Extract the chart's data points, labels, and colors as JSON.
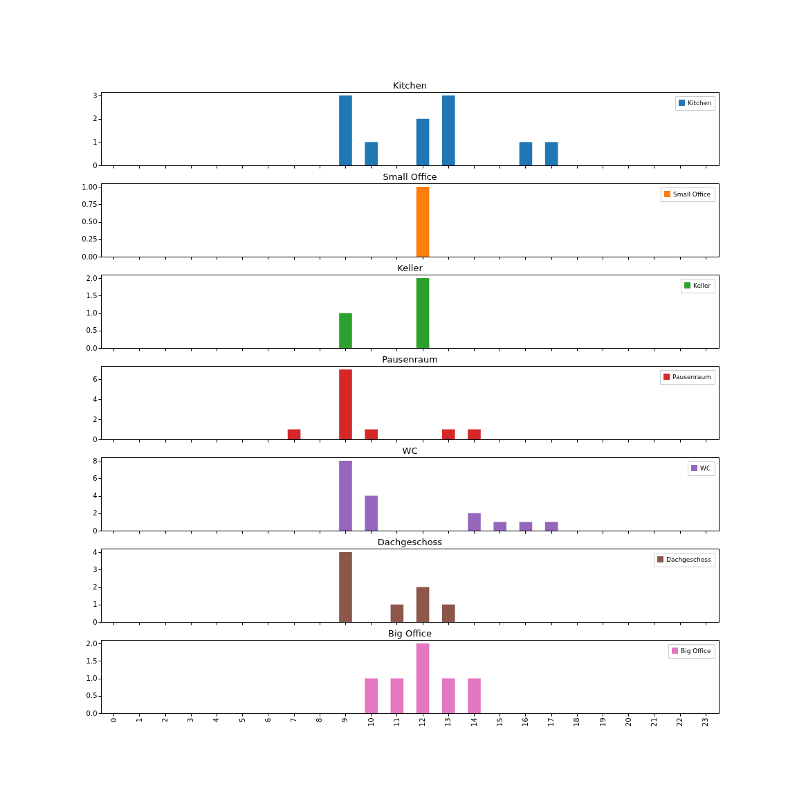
{
  "chart_data": [
    {
      "type": "bar",
      "title": "Kitchen",
      "categories": [
        "0",
        "1",
        "2",
        "3",
        "4",
        "5",
        "6",
        "7",
        "8",
        "9",
        "10",
        "11",
        "12",
        "13",
        "14",
        "15",
        "16",
        "17",
        "18",
        "19",
        "20",
        "21",
        "22",
        "23"
      ],
      "series": [
        {
          "name": "Kitchen",
          "color": "#1f77b4",
          "values": [
            0,
            0,
            0,
            0,
            0,
            0,
            0,
            0,
            0,
            3,
            1,
            0,
            2,
            3,
            0,
            0,
            1,
            1,
            0,
            0,
            0,
            0,
            0,
            0
          ]
        }
      ],
      "ylim": [
        0,
        3.15
      ],
      "yticks": [
        0,
        1,
        2,
        3
      ],
      "legend": "top right",
      "tick_labels": "y"
    },
    {
      "type": "bar",
      "title": "Small Office",
      "categories": [
        "0",
        "1",
        "2",
        "3",
        "4",
        "5",
        "6",
        "7",
        "8",
        "9",
        "10",
        "11",
        "12",
        "13",
        "14",
        "15",
        "16",
        "17",
        "18",
        "19",
        "20",
        "21",
        "22",
        "23"
      ],
      "series": [
        {
          "name": "Small Office",
          "color": "#ff7f0e",
          "values": [
            0,
            0,
            0,
            0,
            0,
            0,
            0,
            0,
            0,
            0,
            0,
            0,
            1,
            0,
            0,
            0,
            0,
            0,
            0,
            0,
            0,
            0,
            0,
            0
          ]
        }
      ],
      "ylim": [
        0,
        1.05
      ],
      "yticks": [
        {
          "value": 0,
          "label": "0.00"
        },
        {
          "value": 0.25,
          "label": "0.25"
        },
        {
          "value": 0.5,
          "label": "0.50"
        },
        {
          "value": 0.75,
          "label": "0.75"
        },
        {
          "value": 1,
          "label": "1.00"
        }
      ],
      "legend": "top right",
      "tick_labels": "y"
    },
    {
      "type": "bar",
      "title": "Keller",
      "categories": [
        "0",
        "1",
        "2",
        "3",
        "4",
        "5",
        "6",
        "7",
        "8",
        "9",
        "10",
        "11",
        "12",
        "13",
        "14",
        "15",
        "16",
        "17",
        "18",
        "19",
        "20",
        "21",
        "22",
        "23"
      ],
      "series": [
        {
          "name": "Keller",
          "color": "#2ca02c",
          "values": [
            0,
            0,
            0,
            0,
            0,
            0,
            0,
            0,
            0,
            1,
            0,
            0,
            2,
            0,
            0,
            0,
            0,
            0,
            0,
            0,
            0,
            0,
            0,
            0
          ]
        }
      ],
      "ylim": [
        0,
        2.1
      ],
      "yticks": [
        {
          "value": 0,
          "label": "0.0"
        },
        0.5,
        {
          "value": 1,
          "label": "1.0"
        },
        1.5,
        {
          "value": 2,
          "label": "2.0"
        }
      ],
      "legend": "top right",
      "tick_labels": "y"
    },
    {
      "type": "bar",
      "title": "Pausenraum",
      "categories": [
        "0",
        "1",
        "2",
        "3",
        "4",
        "5",
        "6",
        "7",
        "8",
        "9",
        "10",
        "11",
        "12",
        "13",
        "14",
        "15",
        "16",
        "17",
        "18",
        "19",
        "20",
        "21",
        "22",
        "23"
      ],
      "series": [
        {
          "name": "Pausenraum",
          "color": "#d62728",
          "values": [
            0,
            0,
            0,
            0,
            0,
            0,
            0,
            1,
            0,
            7,
            1,
            0,
            0,
            1,
            1,
            0,
            0,
            0,
            0,
            0,
            0,
            0,
            0,
            0
          ]
        }
      ],
      "ylim": [
        0,
        7.35
      ],
      "yticks": [
        0,
        2,
        4,
        6
      ],
      "legend": "top right",
      "tick_labels": "y"
    },
    {
      "type": "bar",
      "title": "WC",
      "categories": [
        "0",
        "1",
        "2",
        "3",
        "4",
        "5",
        "6",
        "7",
        "8",
        "9",
        "10",
        "11",
        "12",
        "13",
        "14",
        "15",
        "16",
        "17",
        "18",
        "19",
        "20",
        "21",
        "22",
        "23"
      ],
      "series": [
        {
          "name": "WC",
          "color": "#9467bd",
          "values": [
            0,
            0,
            0,
            0,
            0,
            0,
            0,
            0,
            0,
            8,
            4,
            0,
            0,
            0,
            2,
            1,
            1,
            1,
            0,
            0,
            0,
            0,
            0,
            0
          ]
        }
      ],
      "ylim": [
        0,
        8.4
      ],
      "yticks": [
        0,
        2,
        4,
        6,
        8
      ],
      "legend": "top right",
      "tick_labels": "y"
    },
    {
      "type": "bar",
      "title": "Dachgeschoss",
      "categories": [
        "0",
        "1",
        "2",
        "3",
        "4",
        "5",
        "6",
        "7",
        "8",
        "9",
        "10",
        "11",
        "12",
        "13",
        "14",
        "15",
        "16",
        "17",
        "18",
        "19",
        "20",
        "21",
        "22",
        "23"
      ],
      "series": [
        {
          "name": "Dachgeschoss",
          "color": "#8c564b",
          "values": [
            0,
            0,
            0,
            0,
            0,
            0,
            0,
            0,
            0,
            4,
            0,
            1,
            2,
            1,
            0,
            0,
            0,
            0,
            0,
            0,
            0,
            0,
            0,
            0
          ]
        }
      ],
      "ylim": [
        0,
        4.2
      ],
      "yticks": [
        0,
        1,
        2,
        3,
        4
      ],
      "legend": "top right",
      "tick_labels": "y"
    },
    {
      "type": "bar",
      "title": "Big Office",
      "categories": [
        "0",
        "1",
        "2",
        "3",
        "4",
        "5",
        "6",
        "7",
        "8",
        "9",
        "10",
        "11",
        "12",
        "13",
        "14",
        "15",
        "16",
        "17",
        "18",
        "19",
        "20",
        "21",
        "22",
        "23"
      ],
      "series": [
        {
          "name": "Big Office",
          "color": "#e377c2",
          "values": [
            0,
            0,
            0,
            0,
            0,
            0,
            0,
            0,
            0,
            0,
            1,
            1,
            2,
            1,
            1,
            0,
            0,
            0,
            0,
            0,
            0,
            0,
            0,
            0
          ]
        }
      ],
      "ylim": [
        0,
        2.1
      ],
      "yticks": [
        {
          "value": 0,
          "label": "0.0"
        },
        0.5,
        {
          "value": 1,
          "label": "1.0"
        },
        1.5,
        {
          "value": 2,
          "label": "2.0"
        }
      ],
      "legend": "top right"
    }
  ]
}
